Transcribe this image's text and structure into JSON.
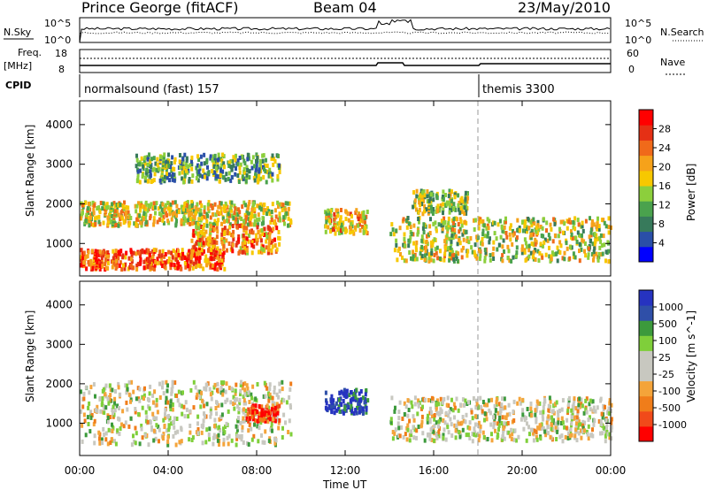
{
  "header": {
    "station": "Prince George (fitACF)",
    "beam": "Beam 04",
    "date": "23/May/2010"
  },
  "strip_labels": {
    "nsky": "N.Sky",
    "nsearch": "N.Search",
    "freq_top": "Freq.",
    "freq_unit": "[MHz]",
    "nave": "Nave",
    "cpid": "CPID",
    "nsky_ticks": [
      "10^5",
      "10^0"
    ],
    "nsearch_ticks": [
      "10^5",
      "10^0"
    ],
    "freq_ticks": [
      "18",
      "8"
    ],
    "nave_ticks": [
      "60",
      "0"
    ]
  },
  "cpid_segments": [
    {
      "label": "normalsound (fast) 157",
      "start_hour": 0
    },
    {
      "label": "themis 3300",
      "start_hour": 18
    }
  ],
  "chart_data": [
    {
      "type": "heatmap",
      "name": "power",
      "ylabel": "Slant Range [km]",
      "ylim": [
        180,
        4600
      ],
      "yticks": [
        1000,
        2000,
        3000,
        4000
      ],
      "xlim": [
        0,
        24
      ],
      "colorbar_label": "Power [dB]",
      "colorbar_ticks": [
        "28",
        "24",
        "20",
        "16",
        "12",
        "8",
        "4"
      ],
      "colorbar_colors": [
        "#0000ff",
        "#2a4fa8",
        "#377a5b",
        "#4aa24d",
        "#8ccf3c",
        "#f7c800",
        "#f6a21a",
        "#f06a1a",
        "#e53015",
        "#ff0000"
      ],
      "echo_bands": [
        {
          "t0": 0.0,
          "t1": 6.5,
          "r0": 400,
          "r1": 900,
          "level": 0.8
        },
        {
          "t0": 0.0,
          "t1": 9.5,
          "r0": 1500,
          "r1": 2100,
          "level": 0.55
        },
        {
          "t0": 2.5,
          "t1": 9.0,
          "r0": 2600,
          "r1": 3300,
          "level": 0.35
        },
        {
          "t0": 5.0,
          "t1": 9.0,
          "r0": 800,
          "r1": 1500,
          "level": 0.7
        },
        {
          "t0": 11.0,
          "t1": 13.0,
          "r0": 1300,
          "r1": 1900,
          "level": 0.6
        },
        {
          "t0": 14.0,
          "t1": 24.0,
          "r0": 600,
          "r1": 1700,
          "level": 0.5
        },
        {
          "t0": 15.0,
          "t1": 17.5,
          "r0": 1800,
          "r1": 2400,
          "level": 0.45
        }
      ]
    },
    {
      "type": "heatmap",
      "name": "velocity",
      "ylabel": "Slant Range [km]",
      "xlabel": "Time UT",
      "ylim": [
        180,
        4600
      ],
      "yticks": [
        1000,
        2000,
        3000,
        4000
      ],
      "xlim": [
        0,
        24
      ],
      "xticks": [
        "00:00",
        "04:00",
        "08:00",
        "12:00",
        "16:00",
        "20:00",
        "00:00"
      ],
      "colorbar_label": "Velocity [m s^-1]",
      "colorbar_ticks": [
        "1000",
        "500",
        "100",
        "25",
        "-25",
        "-100",
        "-500",
        "-1000"
      ],
      "colorbar_colors": [
        "#ff0000",
        "#f14a1a",
        "#f07d1a",
        "#f4a43a",
        "#c8c8c0",
        "#c8c8c0",
        "#7fcf3a",
        "#3c9a3c",
        "#2f4fa8",
        "#2633c0"
      ],
      "echo_bands": [
        {
          "t0": 0.0,
          "t1": 9.5,
          "r0": 500,
          "r1": 2100,
          "level": 0.5
        },
        {
          "t0": 7.5,
          "t1": 9.0,
          "r0": 1100,
          "r1": 1500,
          "level": 0.1
        },
        {
          "t0": 11.0,
          "t1": 13.0,
          "r0": 1300,
          "r1": 1900,
          "level": 0.95
        },
        {
          "t0": 14.0,
          "t1": 24.0,
          "r0": 600,
          "r1": 1700,
          "level": 0.5
        }
      ]
    }
  ],
  "annotations": {
    "dashed_marker_hour": 18
  },
  "colors": {
    "axis": "#000000",
    "dash": "#9a9a9a"
  }
}
